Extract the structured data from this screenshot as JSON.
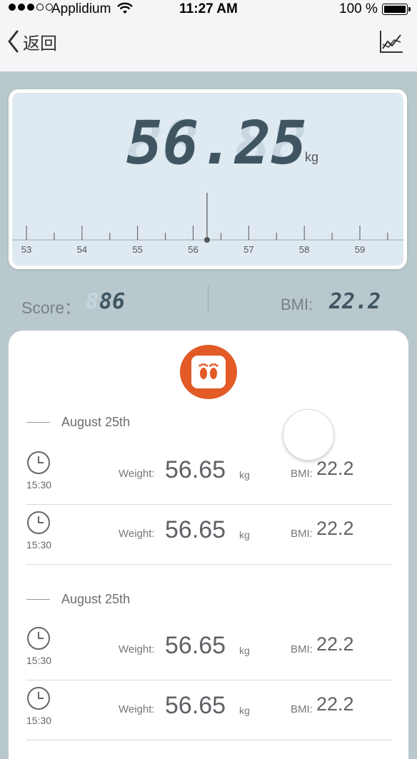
{
  "status_bar": {
    "carrier": "Applidium",
    "time": "11:27 AM",
    "battery_percent": "100 %",
    "signal_bars": 3,
    "signal_total": 5,
    "battery_level": 1.0
  },
  "nav": {
    "back_label": "返回",
    "back_icon": "chevron-left-icon",
    "trend_icon": "line-chart-icon"
  },
  "scale": {
    "weight": "56.25",
    "weight_ghost": "88.88",
    "unit": "kg",
    "ruler_ticks": [
      "53",
      "54",
      "55",
      "56",
      "57",
      "58",
      "59"
    ],
    "ruler_min": 53,
    "ruler_max": 59,
    "pointer_value": 56.25
  },
  "summary": {
    "score_label": "Score：",
    "score_ghost": "8",
    "score_value": "86",
    "bmi_label": "BMI:",
    "bmi_value": "22.2"
  },
  "history": {
    "action_icon": "feet-icon",
    "groups": [
      {
        "date": "August 25th",
        "records": [
          {
            "time": "15:30",
            "weight_label": "Weight:",
            "weight": "56.65",
            "unit": "kg",
            "bmi_label": "BMI:",
            "bmi": "22.2"
          },
          {
            "time": "15:30",
            "weight_label": "Weight:",
            "weight": "56.65",
            "unit": "kg",
            "bmi_label": "BMI:",
            "bmi": "22.2"
          }
        ]
      },
      {
        "date": "August 25th",
        "records": [
          {
            "time": "15:30",
            "weight_label": "Weight:",
            "weight": "56.65",
            "unit": "kg",
            "bmi_label": "BMI:",
            "bmi": "22.2"
          },
          {
            "time": "15:30",
            "weight_label": "Weight:",
            "weight": "56.65",
            "unit": "kg",
            "bmi_label": "BMI:",
            "bmi": "22.2"
          }
        ]
      }
    ]
  },
  "colors": {
    "accent": "#e25a26",
    "lcd_text": "#3f5662",
    "background": "#b9c8cc"
  }
}
